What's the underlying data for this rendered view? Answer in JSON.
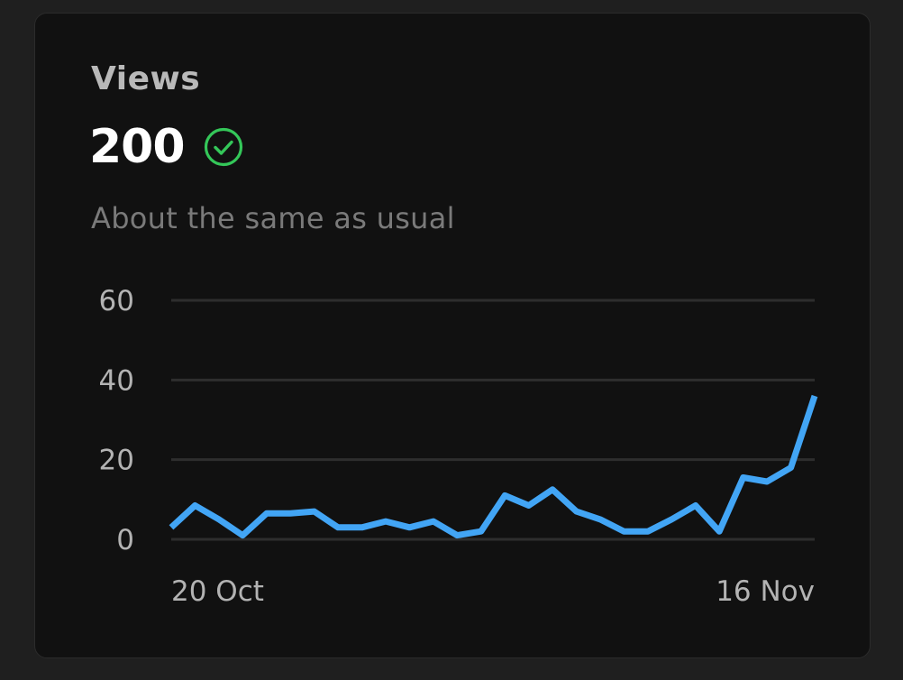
{
  "card": {
    "title": "Views",
    "value": "200",
    "status_icon": "check-circle-icon",
    "subtitle": "About the same as usual"
  },
  "colors": {
    "line": "#42a5f5",
    "check": "#34c759",
    "grid": "#2e2e2e"
  },
  "chart_data": {
    "type": "line",
    "y_ticks": [
      0,
      20,
      40,
      60
    ],
    "ylim": [
      0,
      60
    ],
    "x_tick_labels": [
      "20 Oct",
      "16 Nov"
    ],
    "grid": true,
    "series": [
      {
        "values": [
          3,
          8.5,
          5,
          1,
          6.5,
          6.5,
          7,
          3,
          3,
          4.5,
          3,
          4.5,
          1,
          2,
          11,
          8.5,
          12.5,
          7,
          5,
          2,
          2,
          5,
          8.5,
          2,
          15.5,
          14.5,
          18,
          36
        ]
      }
    ]
  }
}
